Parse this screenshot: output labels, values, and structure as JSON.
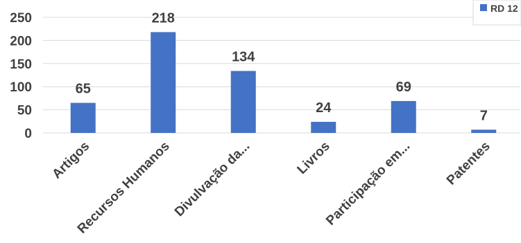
{
  "chart_data": {
    "type": "bar",
    "categories": [
      "Artigos",
      "Recursos Humanos",
      "Divulvação da...",
      "Livros",
      "Participação em...",
      "Patentes"
    ],
    "series": [
      {
        "name": "RD 12",
        "values": [
          65,
          218,
          134,
          24,
          69,
          7
        ],
        "color": "#4472C4"
      }
    ],
    "ylim": [
      0,
      250
    ],
    "yticks": [
      0,
      50,
      100,
      150,
      200,
      250
    ],
    "grid": true,
    "legend_position": "top-right",
    "data_labels": true,
    "xlabel": "",
    "ylabel": "",
    "title": ""
  }
}
